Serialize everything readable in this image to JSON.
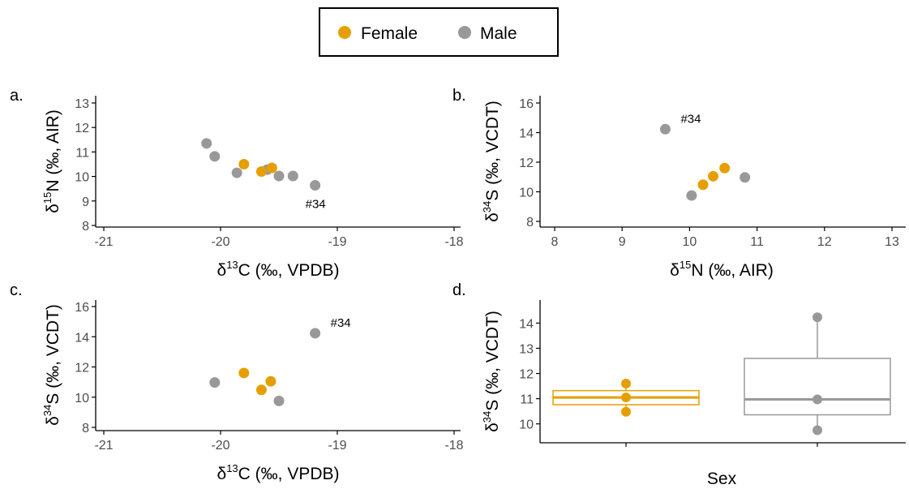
{
  "colors": {
    "Female": "#E69F00",
    "Male": "#999999",
    "axis": "#000000",
    "tick_text": "#4d4d4d"
  },
  "legend": {
    "entries": [
      {
        "label": "Female",
        "color": "#E69F00"
      },
      {
        "label": "Male",
        "color": "#999999"
      }
    ],
    "placement": "top-center"
  },
  "chart_data": [
    {
      "panel": "a.",
      "type": "scatter",
      "xlabel": "δ13C (‰, VPDB)",
      "ylabel": "δ15N (‰, AIR)",
      "xlabel_parts": {
        "pre": "δ",
        "sup": "13",
        "post": "C (‰, VPDB)"
      },
      "ylabel_parts": {
        "pre": "δ",
        "sup": "15",
        "post": "N (‰, AIR)"
      },
      "xlim": [
        -21,
        -18
      ],
      "ylim": [
        8,
        13
      ],
      "xticks": [
        -21,
        -20,
        -19,
        -18
      ],
      "yticks": [
        8,
        9,
        10,
        11,
        12,
        13
      ],
      "grid": false,
      "series": [
        {
          "name": "Female",
          "points": [
            [
              -19.8,
              10.5
            ],
            [
              -19.65,
              10.2
            ],
            [
              -19.56,
              10.35
            ]
          ]
        },
        {
          "name": "Male",
          "points": [
            [
              -20.12,
              11.35
            ],
            [
              -20.05,
              10.82
            ],
            [
              -19.86,
              10.15
            ],
            [
              -19.6,
              10.28
            ],
            [
              -19.5,
              10.02
            ],
            [
              -19.38,
              10.02
            ],
            [
              -19.19,
              9.64
            ]
          ]
        }
      ],
      "annotations": [
        {
          "text": "#34",
          "x": -19.19,
          "y": 9.64
        }
      ]
    },
    {
      "panel": "b.",
      "type": "scatter",
      "xlabel": "δ15N (‰, AIR)",
      "ylabel": "δ34S (‰, VCDT)",
      "xlabel_parts": {
        "pre": "δ",
        "sup": "15",
        "post": "N (‰, AIR)"
      },
      "ylabel_parts": {
        "pre": "δ",
        "sup": "34",
        "post": "S (‰, VCDT)"
      },
      "xlim": [
        8,
        13
      ],
      "ylim": [
        8,
        16
      ],
      "xticks": [
        8,
        9,
        10,
        11,
        12,
        13
      ],
      "yticks": [
        8,
        10,
        12,
        14,
        16
      ],
      "grid": false,
      "series": [
        {
          "name": "Female",
          "points": [
            [
              10.2,
              10.48
            ],
            [
              10.35,
              11.05
            ],
            [
              10.52,
              11.6
            ]
          ]
        },
        {
          "name": "Male",
          "points": [
            [
              9.64,
              14.23
            ],
            [
              10.03,
              9.75
            ],
            [
              10.82,
              10.97
            ]
          ]
        }
      ],
      "annotations": [
        {
          "text": "#34",
          "x": 9.64,
          "y": 14.23
        }
      ]
    },
    {
      "panel": "c.",
      "type": "scatter",
      "xlabel": "δ13C (‰, VPDB)",
      "ylabel": "δ34S (‰, VCDT)",
      "xlabel_parts": {
        "pre": "δ",
        "sup": "13",
        "post": "C (‰, VPDB)"
      },
      "ylabel_parts": {
        "pre": "δ",
        "sup": "34",
        "post": "S (‰, VCDT)"
      },
      "xlim": [
        -21,
        -18
      ],
      "ylim": [
        8,
        16
      ],
      "xticks": [
        -21,
        -20,
        -19,
        -18
      ],
      "yticks": [
        8,
        10,
        12,
        14,
        16
      ],
      "grid": false,
      "series": [
        {
          "name": "Female",
          "points": [
            [
              -19.8,
              11.6
            ],
            [
              -19.65,
              10.48
            ],
            [
              -19.57,
              11.05
            ]
          ]
        },
        {
          "name": "Male",
          "points": [
            [
              -20.05,
              10.97
            ],
            [
              -19.5,
              9.75
            ],
            [
              -19.19,
              14.23
            ]
          ]
        }
      ],
      "annotations": [
        {
          "text": "#34",
          "x": -19.19,
          "y": 14.23
        }
      ]
    },
    {
      "panel": "d.",
      "type": "box",
      "xlabel": "Sex",
      "ylabel": "δ34S (‰, VCDT)",
      "xlabel_parts": {
        "pre": "Sex",
        "sup": "",
        "post": ""
      },
      "ylabel_parts": {
        "pre": "δ",
        "sup": "34",
        "post": "S (‰, VCDT)"
      },
      "ylim": [
        9.7,
        14.4
      ],
      "yticks": [
        10,
        11,
        12,
        13,
        14
      ],
      "categories": [
        "Female",
        "Male"
      ],
      "grid": false,
      "boxes": [
        {
          "name": "Female",
          "min": 10.48,
          "q1": 10.76,
          "median": 11.05,
          "q3": 11.32,
          "max": 11.6,
          "points": [
            10.48,
            11.05,
            11.6
          ]
        },
        {
          "name": "Male",
          "min": 9.75,
          "q1": 10.36,
          "median": 10.97,
          "q3": 12.6,
          "max": 14.23,
          "points": [
            9.75,
            10.97,
            14.23
          ]
        }
      ]
    }
  ]
}
